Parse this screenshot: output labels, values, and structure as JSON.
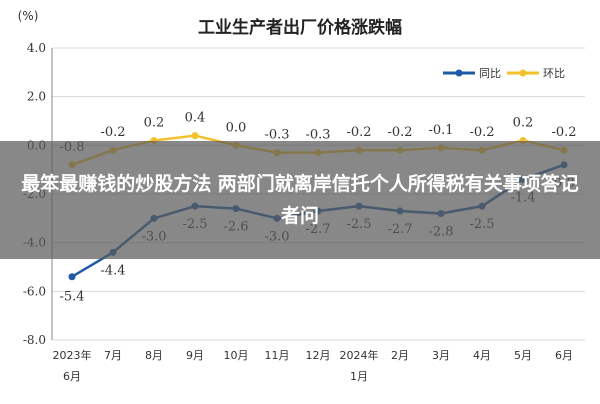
{
  "chart_data": {
    "type": "line",
    "title": "工业生产者出厂价格涨跌幅",
    "unit_label": "(%)",
    "ylim": [
      -8.0,
      4.0
    ],
    "y_ticks": [
      "4.0",
      "2.0",
      "0.0",
      "-2.0",
      "-4.0",
      "-6.0",
      "-8.0"
    ],
    "y_tick_values": [
      4,
      2,
      0,
      -2,
      -4,
      -6,
      -8
    ],
    "categories": [
      {
        "line1": "2023年",
        "line2": "6月"
      },
      {
        "line1": "7月",
        "line2": ""
      },
      {
        "line1": "8月",
        "line2": ""
      },
      {
        "line1": "9月",
        "line2": ""
      },
      {
        "line1": "10月",
        "line2": ""
      },
      {
        "line1": "11月",
        "line2": ""
      },
      {
        "line1": "12月",
        "line2": ""
      },
      {
        "line1": "2024年",
        "line2": "1月"
      },
      {
        "line1": "2月",
        "line2": ""
      },
      {
        "line1": "3月",
        "line2": ""
      },
      {
        "line1": "4月",
        "line2": ""
      },
      {
        "line1": "5月",
        "line2": ""
      },
      {
        "line1": "6月",
        "line2": ""
      }
    ],
    "series": [
      {
        "name": "同比",
        "color": "#1f5aa6",
        "values": [
          -5.4,
          -4.4,
          -3.0,
          -2.5,
          -2.6,
          -3.0,
          -2.7,
          -2.5,
          -2.7,
          -2.8,
          -2.5,
          -1.4,
          -0.8
        ],
        "labels": [
          "-5.4",
          "-4.4",
          "-3.0",
          "-2.5",
          "-2.6",
          "-3.0",
          "-2.7",
          "-2.5",
          "-2.7",
          "-2.8",
          "-2.5",
          "-1.4",
          "-0.8"
        ]
      },
      {
        "name": "环比",
        "color": "#f2c12e",
        "values": [
          -0.8,
          -0.2,
          0.2,
          0.4,
          0.0,
          -0.3,
          -0.3,
          -0.2,
          -0.2,
          -0.1,
          -0.2,
          0.2,
          -0.2
        ],
        "labels": [
          "-0.8",
          "-0.2",
          "0.2",
          "0.4",
          "0.0",
          "-0.3",
          "-0.3",
          "-0.2",
          "-0.2",
          "-0.1",
          "-0.2",
          "0.2",
          "-0.2"
        ]
      }
    ],
    "grid": true,
    "legend_position": "top-right"
  },
  "overlay": {
    "text": "最笨最赚钱的炒股方法 两部门就离岸信托个人所得税有关事项答记者问"
  }
}
